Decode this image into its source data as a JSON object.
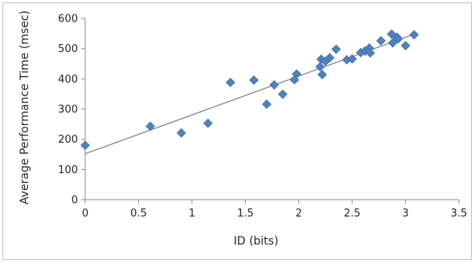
{
  "chart_data": {
    "type": "scatter",
    "title": "",
    "xlabel": "ID (bits)",
    "ylabel": "Average Performance Time (msec)",
    "xlim": [
      0,
      3.5
    ],
    "ylim": [
      0,
      600
    ],
    "xticks": [
      0,
      0.5,
      1,
      1.5,
      2,
      2.5,
      3,
      3.5
    ],
    "yticks": [
      0,
      100,
      200,
      300,
      400,
      500,
      600
    ],
    "xtick_labels": [
      "0",
      "0.5",
      "1",
      "1.5",
      "2",
      "2.5",
      "3",
      "3.5"
    ],
    "ytick_labels": [
      "0",
      "100",
      "200",
      "300",
      "400",
      "500",
      "600"
    ],
    "grid": false,
    "legend": "none",
    "series": [
      {
        "marker": "diamond",
        "color": "#4f81bd",
        "points": [
          [
            0.0,
            180
          ],
          [
            0.61,
            243
          ],
          [
            0.9,
            221
          ],
          [
            1.15,
            253
          ],
          [
            1.36,
            388
          ],
          [
            1.58,
            396
          ],
          [
            1.7,
            316
          ],
          [
            1.77,
            380
          ],
          [
            1.85,
            349
          ],
          [
            1.96,
            397
          ],
          [
            1.98,
            416
          ],
          [
            2.2,
            440
          ],
          [
            2.21,
            465
          ],
          [
            2.22,
            414
          ],
          [
            2.25,
            458
          ],
          [
            2.29,
            470
          ],
          [
            2.35,
            498
          ],
          [
            2.45,
            463
          ],
          [
            2.5,
            466
          ],
          [
            2.58,
            487
          ],
          [
            2.62,
            492
          ],
          [
            2.66,
            502
          ],
          [
            2.67,
            486
          ],
          [
            2.77,
            526
          ],
          [
            2.87,
            548
          ],
          [
            2.88,
            519
          ],
          [
            2.92,
            538
          ],
          [
            2.93,
            532
          ],
          [
            3.0,
            510
          ],
          [
            3.08,
            546
          ]
        ]
      }
    ],
    "trendline": {
      "type": "linear",
      "color": "#7f7f7f",
      "from": [
        0,
        152
      ],
      "to": [
        3.08,
        548
      ]
    }
  }
}
